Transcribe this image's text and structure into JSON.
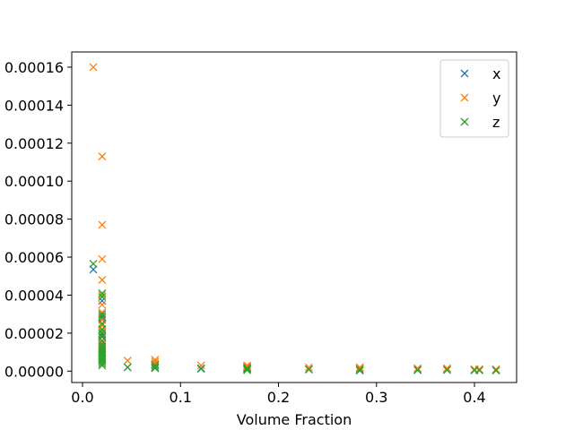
{
  "chart_data": {
    "type": "scatter",
    "title": "",
    "xlabel": "Volume Fraction",
    "ylabel": "",
    "xlim": [
      -0.011,
      0.443
    ],
    "ylim": [
      -6e-06,
      0.000168
    ],
    "xticks": [
      0.0,
      0.1,
      0.2,
      0.3,
      0.4
    ],
    "xtick_labels": [
      "0.0",
      "0.1",
      "0.2",
      "0.3",
      "0.4"
    ],
    "yticks": [
      0.0,
      2e-05,
      4e-05,
      6e-05,
      8e-05,
      0.0001,
      0.00012,
      0.00014,
      0.00016
    ],
    "ytick_labels": [
      "0.00000",
      "0.00002",
      "0.00004",
      "0.00006",
      "0.00008",
      "0.00010",
      "0.00012",
      "0.00014",
      "0.00016"
    ],
    "grid": false,
    "legend_position": "top-right",
    "marker": "x",
    "series": [
      {
        "name": "x",
        "color": "#1f77b4",
        "points": [
          [
            0.011,
            5.35e-05
          ],
          [
            0.02,
            3.7e-05
          ],
          [
            0.02,
            2.8e-05
          ],
          [
            0.02,
            1.9e-05
          ],
          [
            0.02,
            1.2e-05
          ],
          [
            0.02,
            6e-06
          ],
          [
            0.046,
            2e-06
          ],
          [
            0.074,
            3.5e-06
          ],
          [
            0.074,
            2e-06
          ],
          [
            0.121,
            1.5e-06
          ],
          [
            0.168,
            2e-06
          ],
          [
            0.168,
            1.2e-06
          ],
          [
            0.231,
            1e-06
          ],
          [
            0.283,
            1.5e-06
          ],
          [
            0.283,
            8e-07
          ],
          [
            0.342,
            8e-07
          ],
          [
            0.372,
            1e-06
          ],
          [
            0.4,
            8e-07
          ],
          [
            0.405,
            6e-07
          ],
          [
            0.422,
            5e-07
          ]
        ]
      },
      {
        "name": "y",
        "color": "#ff7f0e",
        "points": [
          [
            0.011,
            0.00016
          ],
          [
            0.02,
            0.000113
          ],
          [
            0.02,
            7.7e-05
          ],
          [
            0.02,
            5.9e-05
          ],
          [
            0.02,
            4.8e-05
          ],
          [
            0.02,
            4e-05
          ],
          [
            0.02,
            3.5e-05
          ],
          [
            0.02,
            3.1e-05
          ],
          [
            0.02,
            2.7e-05
          ],
          [
            0.02,
            2.4e-05
          ],
          [
            0.02,
            2.1e-05
          ],
          [
            0.02,
            1.8e-05
          ],
          [
            0.02,
            1.5e-05
          ],
          [
            0.02,
            1.2e-05
          ],
          [
            0.02,
            1e-05
          ],
          [
            0.02,
            8e-06
          ],
          [
            0.046,
            5.5e-06
          ],
          [
            0.074,
            6e-06
          ],
          [
            0.074,
            5e-06
          ],
          [
            0.074,
            4e-06
          ],
          [
            0.121,
            3e-06
          ],
          [
            0.168,
            3e-06
          ],
          [
            0.168,
            2.5e-06
          ],
          [
            0.231,
            2e-06
          ],
          [
            0.283,
            2e-06
          ],
          [
            0.283,
            1.5e-06
          ],
          [
            0.342,
            1.5e-06
          ],
          [
            0.372,
            1.5e-06
          ],
          [
            0.372,
            1e-06
          ],
          [
            0.4,
            1e-06
          ],
          [
            0.405,
            1e-06
          ],
          [
            0.422,
            1e-06
          ]
        ]
      },
      {
        "name": "z",
        "color": "#2ca02c",
        "points": [
          [
            0.011,
            5.65e-05
          ],
          [
            0.02,
            4.1e-05
          ],
          [
            0.02,
            3.9e-05
          ],
          [
            0.02,
            3e-05
          ],
          [
            0.02,
            2.9e-05
          ],
          [
            0.02,
            2.5e-05
          ],
          [
            0.02,
            2.2e-05
          ],
          [
            0.02,
            2e-05
          ],
          [
            0.02,
            1.8e-05
          ],
          [
            0.02,
            1.6e-05
          ],
          [
            0.02,
            1.4e-05
          ],
          [
            0.02,
            1.3e-05
          ],
          [
            0.02,
            1.2e-05
          ],
          [
            0.02,
            1.1e-05
          ],
          [
            0.02,
            1e-05
          ],
          [
            0.02,
            9e-06
          ],
          [
            0.02,
            8e-06
          ],
          [
            0.02,
            7e-06
          ],
          [
            0.02,
            6e-06
          ],
          [
            0.02,
            5e-06
          ],
          [
            0.02,
            4e-06
          ],
          [
            0.02,
            3e-06
          ],
          [
            0.046,
            2e-06
          ],
          [
            0.074,
            3e-06
          ],
          [
            0.074,
            2e-06
          ],
          [
            0.074,
            1.5e-06
          ],
          [
            0.121,
            1.2e-06
          ],
          [
            0.168,
            1.5e-06
          ],
          [
            0.168,
            1e-06
          ],
          [
            0.168,
            5e-07
          ],
          [
            0.231,
            8e-07
          ],
          [
            0.283,
            8e-07
          ],
          [
            0.283,
            3e-07
          ],
          [
            0.342,
            5e-07
          ],
          [
            0.372,
            6e-07
          ],
          [
            0.4,
            4e-07
          ],
          [
            0.405,
            4e-07
          ],
          [
            0.422,
            3e-07
          ]
        ]
      }
    ]
  }
}
